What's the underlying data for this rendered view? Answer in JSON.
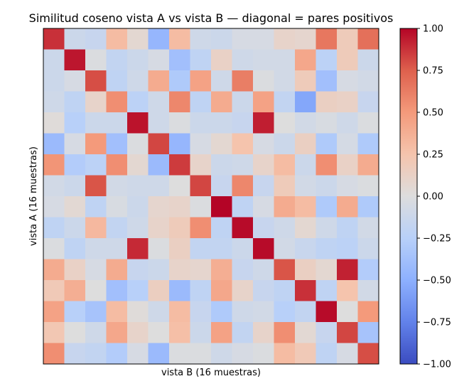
{
  "chart_data": {
    "type": "heatmap",
    "title": "Similitud coseno vista A vs vista B — diagonal = pares positivos",
    "xlabel": "vista B (16 muestras)",
    "ylabel": "vista A (16 muestras)",
    "colormap": "coolwarm",
    "vmin": -1.0,
    "vmax": 1.0,
    "colorbar_ticks": [
      "1.00",
      "0.75",
      "0.50",
      "0.25",
      "0.00",
      "−0.25",
      "−0.50",
      "−0.75",
      "−1.00"
    ],
    "colorbar_tick_values": [
      1.0,
      0.75,
      0.5,
      0.25,
      0.0,
      -0.25,
      -0.5,
      -0.75,
      -1.0
    ],
    "rows": 16,
    "cols": 16,
    "values": [
      [
        0.88,
        -0.12,
        -0.15,
        0.3,
        0.06,
        -0.45,
        0.3,
        -0.1,
        -0.12,
        -0.05,
        -0.05,
        0.1,
        0.08,
        0.65,
        0.18,
        0.68
      ],
      [
        -0.12,
        0.95,
        -0.02,
        -0.18,
        -0.12,
        -0.05,
        -0.38,
        -0.2,
        0.12,
        -0.1,
        -0.08,
        -0.08,
        0.42,
        -0.22,
        0.18,
        -0.12
      ],
      [
        -0.12,
        -0.05,
        0.8,
        -0.2,
        -0.1,
        0.4,
        -0.3,
        0.45,
        -0.1,
        0.62,
        -0.02,
        -0.08,
        0.18,
        -0.38,
        -0.05,
        -0.08
      ],
      [
        -0.1,
        -0.2,
        0.1,
        0.55,
        -0.22,
        -0.1,
        0.58,
        -0.2,
        0.4,
        -0.12,
        0.45,
        -0.18,
        -0.55,
        0.14,
        0.12,
        -0.15
      ],
      [
        0.02,
        -0.25,
        -0.12,
        -0.12,
        0.96,
        -0.1,
        -0.02,
        -0.12,
        -0.12,
        -0.15,
        0.93,
        0.0,
        -0.08,
        -0.04,
        -0.1,
        -0.02
      ],
      [
        -0.42,
        -0.05,
        0.5,
        -0.38,
        -0.02,
        0.82,
        -0.45,
        -0.05,
        0.06,
        0.25,
        -0.05,
        -0.12,
        0.14,
        -0.3,
        -0.06,
        -0.3
      ],
      [
        0.52,
        -0.28,
        -0.22,
        0.55,
        0.06,
        -0.42,
        0.85,
        0.1,
        -0.12,
        -0.1,
        0.1,
        0.3,
        -0.12,
        0.55,
        0.12,
        0.4
      ],
      [
        -0.08,
        -0.12,
        0.78,
        -0.08,
        -0.1,
        -0.1,
        0.0,
        0.82,
        -0.15,
        0.58,
        -0.15,
        0.18,
        -0.08,
        -0.12,
        -0.05,
        -0.02
      ],
      [
        -0.05,
        0.05,
        -0.2,
        -0.04,
        -0.12,
        0.08,
        0.1,
        -0.02,
        1.0,
        -0.2,
        -0.05,
        0.4,
        0.3,
        -0.3,
        0.4,
        -0.3
      ],
      [
        -0.2,
        -0.12,
        0.32,
        -0.18,
        -0.1,
        0.1,
        0.18,
        0.55,
        -0.2,
        0.98,
        -0.15,
        -0.1,
        0.06,
        -0.1,
        -0.2,
        -0.08
      ],
      [
        -0.02,
        -0.2,
        -0.1,
        -0.1,
        0.9,
        -0.02,
        0.14,
        -0.18,
        -0.18,
        -0.12,
        0.98,
        -0.08,
        -0.14,
        -0.2,
        -0.22,
        -0.12
      ],
      [
        0.4,
        0.12,
        -0.05,
        0.4,
        -0.15,
        -0.12,
        0.1,
        0.08,
        0.38,
        -0.15,
        -0.1,
        0.78,
        0.14,
        0.06,
        0.92,
        -0.28
      ],
      [
        0.2,
        0.38,
        0.0,
        -0.38,
        -0.25,
        0.15,
        -0.42,
        -0.2,
        0.42,
        0.1,
        -0.15,
        -0.2,
        0.88,
        -0.2,
        0.25,
        -0.08
      ],
      [
        0.45,
        -0.25,
        -0.35,
        0.3,
        0.02,
        -0.1,
        0.3,
        -0.15,
        -0.3,
        -0.1,
        -0.08,
        -0.25,
        -0.18,
        0.98,
        0.0,
        0.5
      ],
      [
        0.22,
        0.0,
        -0.1,
        0.42,
        0.1,
        0.0,
        0.28,
        -0.12,
        0.45,
        -0.18,
        0.1,
        0.55,
        0.05,
        -0.15,
        0.82,
        -0.35
      ],
      [
        0.55,
        -0.15,
        -0.18,
        -0.28,
        -0.05,
        -0.42,
        -0.02,
        -0.02,
        -0.1,
        -0.05,
        -0.02,
        0.3,
        0.2,
        -0.2,
        -0.05,
        0.8
      ]
    ]
  }
}
